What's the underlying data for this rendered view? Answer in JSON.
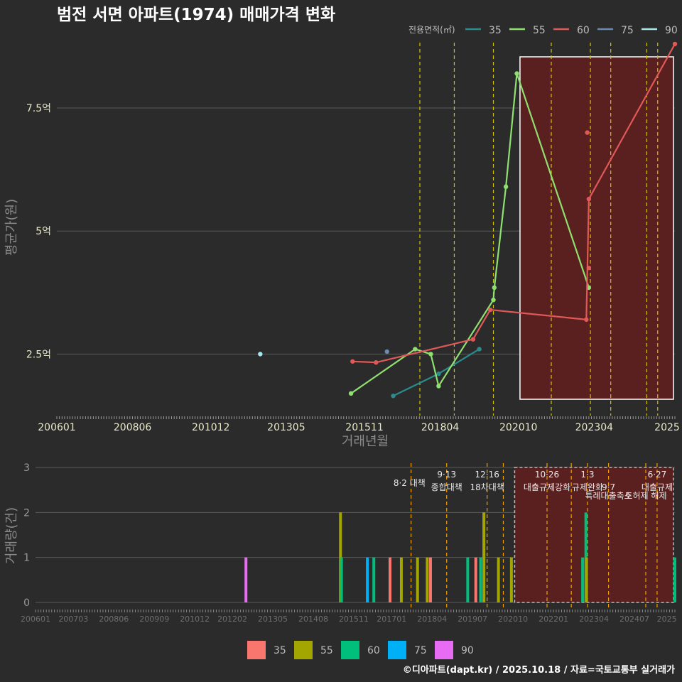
{
  "title": "범전 서면 아파트(1974) 매매가격 변화",
  "footer": "©디아파트(dapt.kr) / 2025.10.18 / 자료=국토교통부 실거래가",
  "colors": {
    "bg": "#2b2b2b",
    "grid": "#5a5a5a",
    "policy_line": "#d4c400",
    "policy_line_bottom": "#f0a000",
    "highlight_fill": "#5a1f1f",
    "s35": "#2a8c8c",
    "s55": "#90e070",
    "s60": "#e05858",
    "s75": "#6a8ab0",
    "s90": "#a8e8e8",
    "b35": "#f8766d",
    "b55": "#a3a500",
    "b60": "#00bf7d",
    "b75": "#00b0f6",
    "b90": "#e76bf3"
  },
  "chart_data": [
    {
      "type": "line",
      "title": "범전 서면 아파트(1974) 매매가격 변화",
      "xlabel": "거래년월",
      "ylabel": "평균가(원)",
      "x_ticks": [
        "200601",
        "200806",
        "201012",
        "201305",
        "201511",
        "201804",
        "202010",
        "202304",
        "2025"
      ],
      "x_tick_pos": [
        2006.0,
        2008.42,
        2010.92,
        2013.33,
        2015.83,
        2018.25,
        2020.75,
        2023.17,
        2025.5
      ],
      "xlim": [
        2006.0,
        2025.75
      ],
      "ylim": [
        1.25,
        8.9
      ],
      "y_ticks": [
        2.5,
        5,
        7.5
      ],
      "y_tick_labels": [
        "2.5억",
        "5억",
        "7.5억"
      ],
      "legend_title": "전용면적(㎡)",
      "legend": [
        "35",
        "55",
        "60",
        "75",
        "90"
      ],
      "policy_lines": [
        2017.6,
        2018.7,
        2019.95,
        2021.8,
        2023.05,
        2023.7,
        2024.85,
        2025.2
      ],
      "highlight": [
        2020.8,
        2025.75
      ],
      "series": [
        {
          "name": "35",
          "x": [
            2016.75,
            2018.2,
            2019.5
          ],
          "y": [
            1.65,
            2.1,
            2.6
          ]
        },
        {
          "name": "55",
          "x": [
            2015.4,
            2017.45,
            2017.95,
            2018.2,
            2019.95,
            2019.98,
            2020.35,
            2020.7,
            2023.0
          ],
          "y": [
            1.7,
            2.6,
            2.5,
            1.85,
            3.6,
            3.85,
            5.9,
            8.2,
            3.85
          ]
        },
        {
          "name": "60",
          "x": [
            2015.45,
            2016.2,
            2019.3,
            2019.85,
            2022.92,
            2023.0,
            2025.75
          ],
          "y": [
            2.35,
            2.33,
            2.8,
            3.4,
            3.2,
            5.65,
            8.8
          ]
        },
        {
          "name": "75",
          "x": [
            2016.55
          ],
          "y": [
            2.55
          ]
        },
        {
          "name": "90",
          "x": [
            2012.5
          ],
          "y": [
            2.5
          ]
        }
      ],
      "outliers": [
        {
          "series": "60",
          "x": 2022.95,
          "y": 7.0
        },
        {
          "series": "60",
          "x": 2023.0,
          "y": 4.25
        }
      ]
    },
    {
      "type": "bar",
      "xlabel": "",
      "ylabel": "거래량(건)",
      "ylim": [
        0,
        3
      ],
      "y_ticks": [
        0,
        1,
        2,
        3
      ],
      "x_ticks": [
        "200601",
        "200703",
        "200806",
        "200909",
        "201012",
        "201202",
        "201305",
        "201408",
        "201511",
        "201701",
        "201804",
        "201907",
        "202010",
        "202201",
        "202304",
        "202407",
        "2025"
      ],
      "x_tick_pos": [
        2006.0,
        2007.17,
        2008.42,
        2009.67,
        2010.92,
        2012.08,
        2013.33,
        2014.58,
        2015.83,
        2017.0,
        2018.25,
        2019.5,
        2020.75,
        2022.0,
        2023.25,
        2024.5,
        2025.5
      ],
      "xlim": [
        2006.0,
        2025.75
      ],
      "legend": [
        "35",
        "55",
        "60",
        "75",
        "90"
      ],
      "highlight": [
        2020.8,
        2025.75
      ],
      "policy_lines": [
        2017.6,
        2018.7,
        2019.95,
        2020.45,
        2021.8,
        2022.55,
        2023.05,
        2023.7,
        2024.85,
        2025.2
      ],
      "bars": [
        {
          "x": 2012.5,
          "series": "90",
          "value": 1
        },
        {
          "x": 2015.42,
          "series": "55",
          "value": 2
        },
        {
          "x": 2015.45,
          "series": "60",
          "value": 1
        },
        {
          "x": 2016.25,
          "series": "75",
          "value": 1
        },
        {
          "x": 2016.45,
          "series": "60",
          "value": 1
        },
        {
          "x": 2016.95,
          "series": "35",
          "value": 1
        },
        {
          "x": 2017.3,
          "series": "55",
          "value": 1
        },
        {
          "x": 2017.8,
          "series": "55",
          "value": 1
        },
        {
          "x": 2018.1,
          "series": "55",
          "value": 1
        },
        {
          "x": 2018.2,
          "series": "35",
          "value": 1
        },
        {
          "x": 2019.35,
          "series": "60",
          "value": 1
        },
        {
          "x": 2019.6,
          "series": "35",
          "value": 1
        },
        {
          "x": 2019.75,
          "series": "60",
          "value": 1
        },
        {
          "x": 2019.85,
          "series": "55",
          "value": 2
        },
        {
          "x": 2020.3,
          "series": "55",
          "value": 1
        },
        {
          "x": 2020.7,
          "series": "55",
          "value": 1
        },
        {
          "x": 2022.9,
          "series": "60",
          "value": 1
        },
        {
          "x": 2023.0,
          "series": "60",
          "value": 2
        },
        {
          "x": 2023.02,
          "series": "55",
          "value": 1
        },
        {
          "x": 2025.75,
          "series": "60",
          "value": 1
        }
      ],
      "annotations": [
        {
          "x": 2017.55,
          "row": 2,
          "text": "8·2 대책"
        },
        {
          "x": 2018.7,
          "row": 1,
          "text": "9·13"
        },
        {
          "x": 2018.7,
          "row": 2.5,
          "text": "종합대책"
        },
        {
          "x": 2019.95,
          "row": 1,
          "text": "12·16"
        },
        {
          "x": 2019.95,
          "row": 2.5,
          "text": "18차대책"
        },
        {
          "x": 2021.8,
          "row": 1,
          "text": "10·26"
        },
        {
          "x": 2021.8,
          "row": 2.5,
          "text": "대출규제강화"
        },
        {
          "x": 2023.05,
          "row": 1,
          "text": "1·3"
        },
        {
          "x": 2023.05,
          "row": 2.5,
          "text": "규제완화"
        },
        {
          "x": 2023.7,
          "row": 2.5,
          "text": "9·7"
        },
        {
          "x": 2023.7,
          "row": 3.5,
          "text": "특례대출축소"
        },
        {
          "x": 2024.85,
          "row": 3.5,
          "text": "토허제 해제"
        },
        {
          "x": 2025.2,
          "row": 1,
          "text": "6·27"
        },
        {
          "x": 2025.2,
          "row": 2.5,
          "text": "대출규제"
        }
      ]
    }
  ]
}
